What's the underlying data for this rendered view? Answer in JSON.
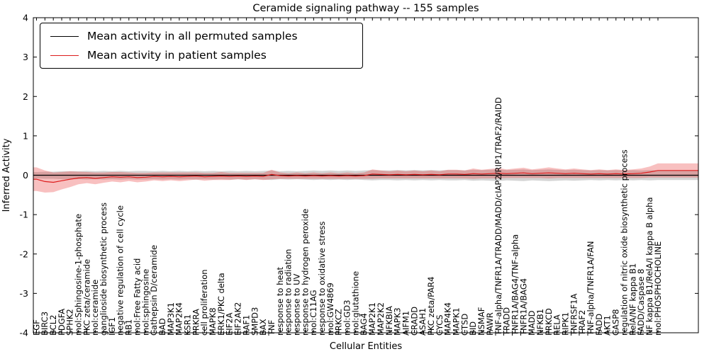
{
  "title": "Ceramide signaling pathway -- 155 samples",
  "legend": {
    "items": [
      {
        "label": "Mean activity in all permuted samples",
        "color": "#000000"
      },
      {
        "label": "Mean activity in patient samples",
        "color": "#dd1c1c"
      }
    ]
  },
  "chart_data": {
    "type": "line",
    "title": "Ceramide signaling pathway -- 155 samples",
    "xlabel": "Cellular Entities",
    "ylabel": "Inferred Activity",
    "ylim": [
      -4,
      4
    ],
    "yticks": [
      -4,
      -3,
      -2,
      -1,
      0,
      1,
      2,
      3,
      4
    ],
    "grid": false,
    "legend_position": "upper left",
    "categories": [
      "EGF",
      "BIRC3",
      "BCL2",
      "PDGFA",
      "SPHK2",
      "mol:Sphingosine-1-phosphate",
      "PKC zeta/ceramide",
      "mol:ceramide",
      "ganglioside biosynthetic process",
      "IGF1",
      "negative regulation of cell cycle",
      "RB1",
      "mol:Free Fatty acid",
      "mol:sphingosine",
      "Cathepsin D/ceramide",
      "BAD",
      "MAP3K1",
      "MAP2K4",
      "KSR1",
      "PRKRA",
      "cell proliferation",
      "MAPK8",
      "ERK1/PKC delta",
      "EIF2A",
      "EIF2AK2",
      "RAF1",
      "SMPD3",
      "BAX",
      "TNF",
      "response to heat",
      "response to radiation",
      "response to UV",
      "response to hydrogen peroxide",
      "mol:C11AG",
      "response to oxidative stress",
      "mol:GW4869",
      "PRKCZ",
      "mol:GD3",
      "mol:glutathione",
      "BAG4",
      "MAP2K1",
      "MAP2K2",
      "NFKBIA",
      "MAPK3",
      "AIFM1",
      "CRADD",
      "ASAH1",
      "PKC zeta/PAR4",
      "CYCS",
      "MAP4K4",
      "MAPK1",
      "CTSD",
      "BID",
      "NSMAF",
      "PAWR",
      "TNF-alpha/TNFR1A/TRADD/MADD/cIAP2/RIP1/TRAF2/RAIDD",
      "TRADD",
      "TNFR1A/BAG4/TNF-alpha",
      "TNFR1A/BAG4",
      "MADD",
      "NFKB1",
      "PRKCD",
      "RELA",
      "RIPK1",
      "TNFRSF1A",
      "TRAF2",
      "TNF-alpha/TNFR1A/FAN",
      "FADD",
      "AKT1",
      "CASP8",
      "regulation of nitric oxide biosynthetic process",
      "RelA/NF kappa B1",
      "FADD/Caspase 8",
      "NF kappa B1/RelA/I kappa B alpha",
      "mol:PHOSPHOCHOLINE"
    ],
    "series": [
      {
        "name": "Mean activity in all permuted samples",
        "color": "#000000",
        "band_color": "rgba(0,0,0,0.17)",
        "values": [
          0,
          0,
          0,
          0,
          0,
          0,
          0,
          0,
          0,
          0,
          0,
          0,
          0,
          0,
          0,
          0,
          0,
          0,
          0,
          0,
          0,
          0,
          0,
          0,
          0,
          0,
          0,
          0,
          0,
          0,
          0,
          0,
          0,
          0,
          0,
          0,
          0,
          0,
          0,
          0,
          0,
          0,
          0,
          0,
          0,
          0,
          0,
          0,
          0,
          0,
          0,
          0,
          0,
          0,
          0,
          0,
          0,
          0,
          0,
          0,
          0,
          0,
          0,
          0,
          0,
          0,
          0,
          0,
          0,
          0,
          0,
          0,
          0,
          0,
          0
        ],
        "band": [
          0.08,
          0.09,
          0.09,
          0.1,
          0.1,
          0.1,
          0.11,
          0.1,
          0.11,
          0.1,
          0.11,
          0.1,
          0.11,
          0.11,
          0.1,
          0.11,
          0.1,
          0.11,
          0.1,
          0.11,
          0.1,
          0.11,
          0.1,
          0.11,
          0.1,
          0.11,
          0.1,
          0.11,
          0.12,
          0.1,
          0.11,
          0.1,
          0.11,
          0.12,
          0.11,
          0.12,
          0.11,
          0.12,
          0.11,
          0.12,
          0.13,
          0.12,
          0.12,
          0.13,
          0.12,
          0.13,
          0.12,
          0.13,
          0.12,
          0.13,
          0.13,
          0.12,
          0.14,
          0.13,
          0.14,
          0.15,
          0.13,
          0.14,
          0.15,
          0.13,
          0.14,
          0.15,
          0.14,
          0.13,
          0.14,
          0.13,
          0.12,
          0.13,
          0.12,
          0.13,
          0.12,
          0.13,
          0.12,
          0.13,
          0.12
        ]
      },
      {
        "name": "Mean activity in patient samples",
        "color": "#dd1c1c",
        "band_color": "rgba(230,30,30,0.28)",
        "values": [
          -0.1,
          -0.16,
          -0.18,
          -0.14,
          -0.1,
          -0.07,
          -0.06,
          -0.08,
          -0.06,
          -0.04,
          -0.05,
          -0.04,
          -0.06,
          -0.05,
          -0.03,
          -0.04,
          -0.03,
          -0.04,
          -0.03,
          -0.02,
          -0.04,
          -0.03,
          -0.02,
          -0.03,
          -0.02,
          -0.03,
          -0.02,
          -0.03,
          0.02,
          -0.01,
          -0.02,
          -0.01,
          -0.02,
          -0.01,
          -0.02,
          -0.01,
          -0.02,
          -0.01,
          -0.02,
          -0.01,
          0.03,
          0.02,
          0.01,
          0.02,
          0.01,
          0.02,
          0.01,
          0.02,
          0.01,
          0.03,
          0.03,
          0.02,
          0.04,
          0.03,
          0.04,
          0.05,
          0.04,
          0.05,
          0.06,
          0.04,
          0.05,
          0.06,
          0.05,
          0.04,
          0.05,
          0.04,
          0.03,
          0.04,
          0.03,
          0.04,
          0.03,
          0.04,
          0.05,
          0.08,
          0.12
        ],
        "band": [
          0.3,
          0.28,
          0.25,
          0.22,
          0.2,
          0.16,
          0.14,
          0.15,
          0.13,
          0.12,
          0.13,
          0.11,
          0.12,
          0.11,
          0.1,
          0.11,
          0.1,
          0.11,
          0.1,
          0.09,
          0.1,
          0.09,
          0.1,
          0.09,
          0.08,
          0.09,
          0.08,
          0.09,
          0.12,
          0.08,
          0.07,
          0.08,
          0.07,
          0.08,
          0.07,
          0.08,
          0.07,
          0.08,
          0.07,
          0.08,
          0.12,
          0.1,
          0.09,
          0.1,
          0.09,
          0.1,
          0.09,
          0.1,
          0.09,
          0.11,
          0.11,
          0.1,
          0.13,
          0.11,
          0.12,
          0.13,
          0.11,
          0.12,
          0.13,
          0.11,
          0.12,
          0.14,
          0.12,
          0.11,
          0.12,
          0.11,
          0.1,
          0.11,
          0.1,
          0.11,
          0.1,
          0.11,
          0.12,
          0.14,
          0.18
        ]
      }
    ]
  }
}
